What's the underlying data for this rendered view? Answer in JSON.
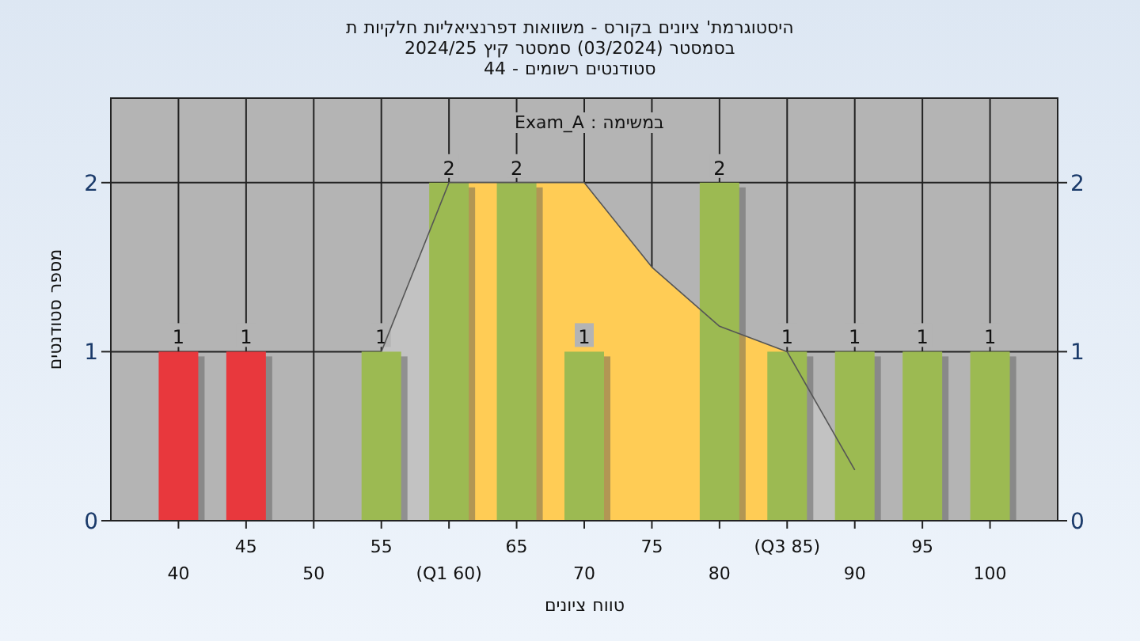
{
  "chart_data": {
    "type": "bar",
    "title": "'היסטוגרמת ציונים בקורס - משוואות דפרנציאליות חלקיות ת",
    "subtitle": "בסמסטר (03/2024) סמסטר קיץ 2024/25\nסטודנטים רשומים - 44",
    "xlabel": "טווח ציונים",
    "ylabel": "מספר סטודנטים",
    "annotations": [
      "במשימה : Exam_A"
    ],
    "categories": [
      "40",
      "45",
      "50",
      "55",
      "(Q1 60)",
      "65",
      "70",
      "75",
      "80",
      "(Q3 85)",
      "90",
      "95",
      "100"
    ],
    "series": [
      {
        "type": "area",
        "color": "#c2c2c2",
        "values": [
          null,
          null,
          null,
          1,
          2,
          null,
          null,
          null,
          null,
          1,
          0.3,
          null,
          null
        ]
      },
      {
        "type": "area",
        "color": "#ffcc55",
        "values": [
          null,
          null,
          null,
          null,
          2,
          2,
          2,
          1.5,
          1.15,
          1,
          null,
          null,
          null
        ]
      },
      {
        "type": "bar",
        "colors": [
          "#e8383d",
          "#e8383d",
          "#9cba52",
          "#9cba52",
          "#9cba52",
          "#9cba52",
          "#9cba52",
          "#9cba52",
          "#9cba52",
          "#9cba52",
          "#9cba52",
          "#9cba52",
          "#9cba52"
        ],
        "values": [
          1,
          1,
          0,
          1,
          2,
          2,
          1,
          0,
          2,
          1,
          1,
          1,
          1
        ],
        "value_labels": [
          "1",
          "1",
          null,
          "1",
          "2",
          "2",
          "1",
          null,
          "2",
          "1",
          "1",
          "1",
          "1"
        ]
      }
    ],
    "ylim": [
      0,
      2.5
    ],
    "yticks": [
      0,
      1,
      2
    ],
    "y2lim": [
      0,
      2.5
    ],
    "y2ticks": [
      0,
      1,
      2
    ],
    "grid": true
  }
}
